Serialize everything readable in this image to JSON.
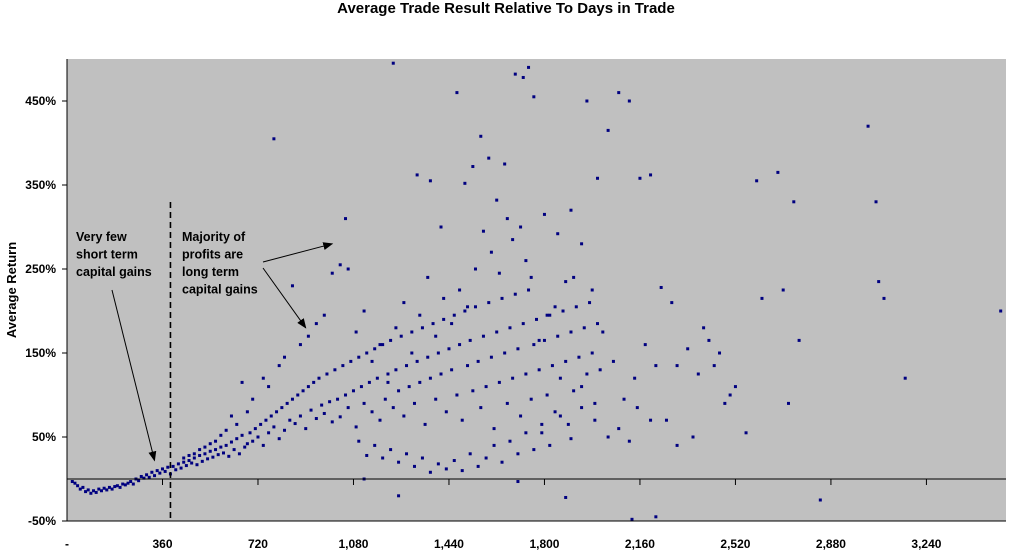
{
  "chart_data": {
    "type": "scatter",
    "title": "Average Trade Result Relative To Days in Trade",
    "xlabel": "",
    "ylabel": "Average Return",
    "xlim": [
      0,
      3540
    ],
    "ylim": [
      -50,
      500
    ],
    "x_ticks": [
      "-",
      "360",
      "720",
      "1,080",
      "1,440",
      "1,800",
      "2,160",
      "2,520",
      "2,880",
      "3,240"
    ],
    "x_tick_values": [
      0,
      360,
      720,
      1080,
      1440,
      1800,
      2160,
      2520,
      2880,
      3240
    ],
    "y_ticks": [
      "-50%",
      "50%",
      "150%",
      "250%",
      "350%",
      "450%"
    ],
    "y_tick_values": [
      -50,
      50,
      150,
      250,
      350,
      450
    ],
    "grid": false,
    "legend": "none",
    "colors": {
      "plot_bg": "#c0c0c0",
      "point": "#000080",
      "axis": "#000000"
    },
    "marker_line_x": 390,
    "annotations": [
      {
        "lines": [
          "Very few",
          "short term",
          "capital gains"
        ],
        "arrow_to": [
          330,
          22
        ]
      },
      {
        "lines": [
          "Majority of",
          "profits are",
          "long term",
          "capital gains"
        ],
        "arrow_to": [
          [
            1000,
            280
          ],
          [
            900,
            180
          ]
        ]
      }
    ],
    "points": [
      [
        20,
        -3
      ],
      [
        30,
        -5
      ],
      [
        40,
        -8
      ],
      [
        50,
        -12
      ],
      [
        60,
        -10
      ],
      [
        70,
        -15
      ],
      [
        80,
        -13
      ],
      [
        90,
        -17
      ],
      [
        100,
        -14
      ],
      [
        110,
        -16
      ],
      [
        120,
        -12
      ],
      [
        130,
        -14
      ],
      [
        140,
        -11
      ],
      [
        150,
        -13
      ],
      [
        160,
        -10
      ],
      [
        170,
        -12
      ],
      [
        180,
        -9
      ],
      [
        190,
        -8
      ],
      [
        200,
        -10
      ],
      [
        210,
        -6
      ],
      [
        220,
        -7
      ],
      [
        230,
        -5
      ],
      [
        240,
        -3
      ],
      [
        250,
        -6
      ],
      [
        260,
        0
      ],
      [
        270,
        -2
      ],
      [
        280,
        3
      ],
      [
        290,
        1
      ],
      [
        300,
        5
      ],
      [
        310,
        2
      ],
      [
        320,
        8
      ],
      [
        330,
        4
      ],
      [
        340,
        10
      ],
      [
        350,
        7
      ],
      [
        360,
        12
      ],
      [
        370,
        9
      ],
      [
        380,
        14
      ],
      [
        390,
        6
      ],
      [
        400,
        15
      ],
      [
        410,
        11
      ],
      [
        420,
        18
      ],
      [
        430,
        13
      ],
      [
        440,
        20
      ],
      [
        450,
        16
      ],
      [
        460,
        22
      ],
      [
        470,
        19
      ],
      [
        480,
        25
      ],
      [
        490,
        17
      ],
      [
        500,
        28
      ],
      [
        510,
        21
      ],
      [
        520,
        30
      ],
      [
        530,
        24
      ],
      [
        540,
        33
      ],
      [
        550,
        26
      ],
      [
        560,
        35
      ],
      [
        570,
        29
      ],
      [
        580,
        38
      ],
      [
        590,
        31
      ],
      [
        600,
        40
      ],
      [
        610,
        27
      ],
      [
        620,
        44
      ],
      [
        630,
        35
      ],
      [
        640,
        48
      ],
      [
        650,
        30
      ],
      [
        660,
        52
      ],
      [
        670,
        38
      ],
      [
        680,
        42
      ],
      [
        690,
        55
      ],
      [
        700,
        45
      ],
      [
        710,
        60
      ],
      [
        720,
        50
      ],
      [
        730,
        65
      ],
      [
        740,
        40
      ],
      [
        750,
        70
      ],
      [
        760,
        55
      ],
      [
        770,
        75
      ],
      [
        780,
        62
      ],
      [
        790,
        80
      ],
      [
        800,
        48
      ],
      [
        810,
        85
      ],
      [
        820,
        58
      ],
      [
        830,
        90
      ],
      [
        840,
        70
      ],
      [
        850,
        95
      ],
      [
        860,
        66
      ],
      [
        870,
        100
      ],
      [
        880,
        75
      ],
      [
        890,
        105
      ],
      [
        900,
        60
      ],
      [
        910,
        110
      ],
      [
        920,
        82
      ],
      [
        930,
        115
      ],
      [
        940,
        72
      ],
      [
        950,
        120
      ],
      [
        960,
        88
      ],
      [
        970,
        78
      ],
      [
        980,
        125
      ],
      [
        990,
        92
      ],
      [
        1000,
        68
      ],
      [
        1010,
        130
      ],
      [
        1020,
        95
      ],
      [
        1030,
        74
      ],
      [
        1040,
        135
      ],
      [
        1050,
        100
      ],
      [
        1060,
        85
      ],
      [
        1070,
        140
      ],
      [
        1080,
        105
      ],
      [
        1090,
        62
      ],
      [
        1100,
        145
      ],
      [
        1110,
        110
      ],
      [
        1120,
        90
      ],
      [
        1130,
        150
      ],
      [
        1140,
        115
      ],
      [
        1150,
        80
      ],
      [
        1160,
        155
      ],
      [
        1170,
        120
      ],
      [
        1180,
        70
      ],
      [
        1190,
        160
      ],
      [
        1200,
        95
      ],
      [
        1210,
        125
      ],
      [
        1220,
        165
      ],
      [
        1230,
        85
      ],
      [
        1240,
        130
      ],
      [
        1250,
        105
      ],
      [
        1260,
        170
      ],
      [
        1270,
        75
      ],
      [
        1280,
        135
      ],
      [
        1290,
        110
      ],
      [
        1300,
        175
      ],
      [
        1310,
        90
      ],
      [
        1320,
        140
      ],
      [
        1330,
        115
      ],
      [
        1340,
        180
      ],
      [
        1350,
        65
      ],
      [
        1360,
        145
      ],
      [
        1370,
        120
      ],
      [
        1380,
        185
      ],
      [
        1390,
        95
      ],
      [
        1400,
        150
      ],
      [
        1410,
        125
      ],
      [
        1420,
        190
      ],
      [
        1430,
        80
      ],
      [
        1440,
        155
      ],
      [
        1450,
        130
      ],
      [
        1460,
        195
      ],
      [
        1470,
        100
      ],
      [
        1480,
        160
      ],
      [
        1490,
        70
      ],
      [
        1500,
        200
      ],
      [
        1510,
        135
      ],
      [
        1520,
        165
      ],
      [
        1530,
        105
      ],
      [
        1540,
        205
      ],
      [
        1550,
        140
      ],
      [
        1560,
        85
      ],
      [
        1570,
        170
      ],
      [
        1580,
        110
      ],
      [
        1590,
        210
      ],
      [
        1600,
        145
      ],
      [
        1610,
        60
      ],
      [
        1620,
        175
      ],
      [
        1630,
        115
      ],
      [
        1640,
        215
      ],
      [
        1650,
        150
      ],
      [
        1660,
        90
      ],
      [
        1670,
        180
      ],
      [
        1680,
        120
      ],
      [
        1690,
        220
      ],
      [
        1700,
        155
      ],
      [
        1710,
        75
      ],
      [
        1720,
        185
      ],
      [
        1730,
        125
      ],
      [
        1740,
        225
      ],
      [
        1750,
        95
      ],
      [
        1760,
        160
      ],
      [
        1770,
        190
      ],
      [
        1780,
        130
      ],
      [
        1790,
        55
      ],
      [
        1800,
        165
      ],
      [
        1810,
        100
      ],
      [
        1820,
        195
      ],
      [
        1830,
        135
      ],
      [
        1840,
        80
      ],
      [
        1850,
        170
      ],
      [
        1860,
        120
      ],
      [
        1870,
        200
      ],
      [
        1880,
        140
      ],
      [
        1890,
        65
      ],
      [
        1900,
        175
      ],
      [
        1910,
        105
      ],
      [
        1920,
        205
      ],
      [
        1930,
        145
      ],
      [
        1940,
        85
      ],
      [
        1950,
        180
      ],
      [
        1960,
        125
      ],
      [
        1970,
        210
      ],
      [
        1980,
        150
      ],
      [
        1990,
        90
      ],
      [
        2000,
        185
      ],
      [
        2010,
        130
      ],
      [
        780,
        405
      ],
      [
        1050,
        310
      ],
      [
        1230,
        495
      ],
      [
        1320,
        362
      ],
      [
        1370,
        355
      ],
      [
        1410,
        300
      ],
      [
        1470,
        460
      ],
      [
        1500,
        352
      ],
      [
        1530,
        372
      ],
      [
        1560,
        408
      ],
      [
        1590,
        382
      ],
      [
        1620,
        332
      ],
      [
        1650,
        375
      ],
      [
        1690,
        482
      ],
      [
        1720,
        478
      ],
      [
        1740,
        490
      ],
      [
        1760,
        455
      ],
      [
        1800,
        315
      ],
      [
        1850,
        292
      ],
      [
        1900,
        320
      ],
      [
        1960,
        450
      ],
      [
        2000,
        358
      ],
      [
        2040,
        415
      ],
      [
        2080,
        460
      ],
      [
        2120,
        450
      ],
      [
        2160,
        358
      ],
      [
        2200,
        362
      ],
      [
        2240,
        228
      ],
      [
        2280,
        210
      ],
      [
        2600,
        355
      ],
      [
        2680,
        365
      ],
      [
        2740,
        330
      ],
      [
        3020,
        420
      ],
      [
        3050,
        330
      ],
      [
        3060,
        235
      ],
      [
        3080,
        215
      ],
      [
        3520,
        200
      ],
      [
        3160,
        120
      ],
      [
        2700,
        225
      ],
      [
        2620,
        215
      ],
      [
        2560,
        55
      ],
      [
        2720,
        90
      ],
      [
        2760,
        165
      ],
      [
        2840,
        -25
      ],
      [
        2220,
        -45
      ],
      [
        2130,
        -48
      ],
      [
        1880,
        -22
      ],
      [
        1700,
        -3
      ],
      [
        1250,
        -20
      ],
      [
        1120,
        0
      ],
      [
        2480,
        90
      ],
      [
        2460,
        150
      ],
      [
        2420,
        165
      ],
      [
        2380,
        125
      ],
      [
        2340,
        155
      ],
      [
        2300,
        135
      ],
      [
        2260,
        70
      ],
      [
        2220,
        135
      ],
      [
        2180,
        160
      ],
      [
        2140,
        120
      ],
      [
        2100,
        95
      ],
      [
        2060,
        140
      ],
      [
        2020,
        175
      ],
      [
        1980,
        225
      ],
      [
        1940,
        280
      ],
      [
        1910,
        240
      ],
      [
        1880,
        235
      ],
      [
        1840,
        205
      ],
      [
        1810,
        195
      ],
      [
        1780,
        165
      ],
      [
        1750,
        240
      ],
      [
        1730,
        260
      ],
      [
        1710,
        300
      ],
      [
        1680,
        285
      ],
      [
        1660,
        310
      ],
      [
        1630,
        245
      ],
      [
        1600,
        270
      ],
      [
        1570,
        295
      ],
      [
        1540,
        250
      ],
      [
        1510,
        205
      ],
      [
        1480,
        225
      ],
      [
        1450,
        185
      ],
      [
        1420,
        215
      ],
      [
        1390,
        170
      ],
      [
        1360,
        240
      ],
      [
        1330,
        195
      ],
      [
        1300,
        150
      ],
      [
        1270,
        210
      ],
      [
        1240,
        180
      ],
      [
        1210,
        115
      ],
      [
        1180,
        160
      ],
      [
        1150,
        140
      ],
      [
        1120,
        200
      ],
      [
        1090,
        175
      ],
      [
        1060,
        250
      ],
      [
        1030,
        255
      ],
      [
        1000,
        245
      ],
      [
        970,
        195
      ],
      [
        940,
        185
      ],
      [
        910,
        170
      ],
      [
        880,
        160
      ],
      [
        850,
        230
      ],
      [
        820,
        145
      ],
      [
        800,
        135
      ],
      [
        760,
        110
      ],
      [
        740,
        120
      ],
      [
        700,
        95
      ],
      [
        680,
        80
      ],
      [
        660,
        115
      ],
      [
        640,
        65
      ],
      [
        620,
        75
      ],
      [
        600,
        58
      ],
      [
        580,
        52
      ],
      [
        560,
        45
      ],
      [
        540,
        42
      ],
      [
        520,
        38
      ],
      [
        500,
        35
      ],
      [
        480,
        30
      ],
      [
        460,
        28
      ],
      [
        440,
        25
      ],
      [
        2300,
        40
      ],
      [
        2360,
        50
      ],
      [
        2500,
        100
      ],
      [
        2520,
        110
      ],
      [
        2440,
        135
      ],
      [
        2400,
        180
      ],
      [
        2200,
        70
      ],
      [
        2150,
        85
      ],
      [
        2120,
        45
      ],
      [
        2080,
        60
      ],
      [
        2040,
        50
      ],
      [
        1990,
        70
      ],
      [
        1940,
        110
      ],
      [
        1900,
        48
      ],
      [
        1860,
        75
      ],
      [
        1820,
        40
      ],
      [
        1790,
        65
      ],
      [
        1760,
        35
      ],
      [
        1730,
        55
      ],
      [
        1700,
        30
      ],
      [
        1670,
        45
      ],
      [
        1640,
        20
      ],
      [
        1610,
        40
      ],
      [
        1580,
        25
      ],
      [
        1550,
        15
      ],
      [
        1520,
        30
      ],
      [
        1490,
        10
      ],
      [
        1460,
        22
      ],
      [
        1430,
        12
      ],
      [
        1400,
        18
      ],
      [
        1370,
        8
      ],
      [
        1340,
        25
      ],
      [
        1310,
        15
      ],
      [
        1280,
        30
      ],
      [
        1250,
        20
      ],
      [
        1220,
        35
      ],
      [
        1190,
        25
      ],
      [
        1160,
        40
      ],
      [
        1130,
        28
      ],
      [
        1100,
        45
      ]
    ]
  }
}
